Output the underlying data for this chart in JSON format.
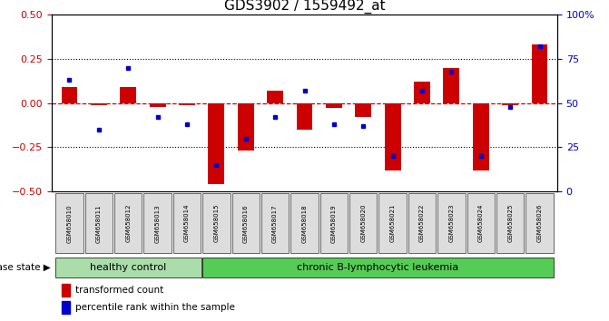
{
  "title": "GDS3902 / 1559492_at",
  "samples": [
    "GSM658010",
    "GSM658011",
    "GSM658012",
    "GSM658013",
    "GSM658014",
    "GSM658015",
    "GSM658016",
    "GSM658017",
    "GSM658018",
    "GSM658019",
    "GSM658020",
    "GSM658021",
    "GSM658022",
    "GSM658023",
    "GSM658024",
    "GSM658025",
    "GSM658026"
  ],
  "red_bars": [
    0.09,
    -0.01,
    0.09,
    -0.02,
    -0.01,
    -0.46,
    -0.27,
    0.07,
    -0.15,
    -0.03,
    -0.08,
    -0.38,
    0.12,
    0.2,
    -0.38,
    -0.01,
    0.33
  ],
  "blue_dots_pct": [
    63,
    35,
    70,
    42,
    38,
    15,
    30,
    42,
    57,
    38,
    37,
    20,
    57,
    68,
    20,
    48,
    82
  ],
  "group_labels": [
    "healthy control",
    "chronic B-lymphocytic leukemia"
  ],
  "healthy_count": 5,
  "ylim": [
    -0.5,
    0.5
  ],
  "yticks_left": [
    -0.5,
    -0.25,
    0.0,
    0.25,
    0.5
  ],
  "yticks_right_pct": [
    0,
    25,
    50,
    75,
    100
  ],
  "yticks_right_labels": [
    "0",
    "25",
    "50",
    "75",
    "100%"
  ],
  "red_bar_color": "#CC0000",
  "blue_dot_color": "#0000CC",
  "zero_line_color": "#CC0000",
  "healthy_bg": "#AADDAA",
  "leukemia_bg": "#55CC55",
  "sample_cell_color": "#DDDDDD",
  "bar_width": 0.55,
  "legend_red_label": "transformed count",
  "legend_blue_label": "percentile rank within the sample",
  "disease_state_label": "disease state"
}
